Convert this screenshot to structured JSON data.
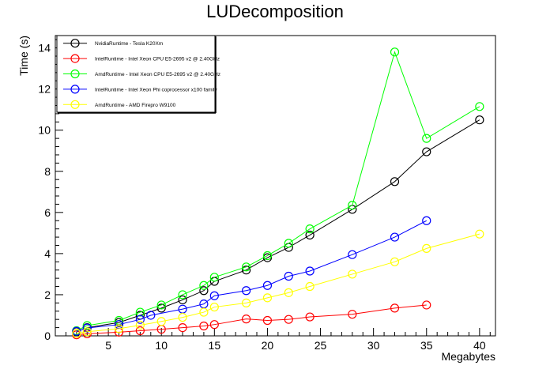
{
  "chart_data": {
    "type": "line",
    "title": "LUDecomposition",
    "xlabel": "Megabytes",
    "ylabel": "Time (s)",
    "xlim": [
      0,
      41.5
    ],
    "ylim": [
      0,
      14.6
    ],
    "xticks": [
      5,
      10,
      15,
      20,
      25,
      30,
      35,
      40
    ],
    "yticks": [
      0,
      2,
      4,
      6,
      8,
      10,
      12,
      14
    ],
    "legend_position": "top-left",
    "grid": false,
    "series": [
      {
        "name": "NvidiaRuntime - Tesla K20Xm",
        "color": "#000000",
        "x": [
          2,
          3,
          6,
          8,
          10,
          12,
          14,
          15,
          18,
          20,
          22,
          24,
          28,
          32,
          35,
          40
        ],
        "y": [
          0.2,
          0.4,
          0.65,
          1.0,
          1.35,
          1.75,
          2.2,
          2.65,
          3.2,
          3.8,
          4.3,
          4.9,
          6.15,
          7.5,
          8.95,
          10.5
        ]
      },
      {
        "name": "IntelRuntime - Intel Xeon CPU E5-2695 v2 @ 2.40GHz",
        "color": "#ff0000",
        "x": [
          2,
          3,
          6,
          8,
          10,
          12,
          14,
          15,
          18,
          20,
          22,
          24,
          28,
          32,
          35
        ],
        "y": [
          0.05,
          0.1,
          0.18,
          0.25,
          0.32,
          0.4,
          0.48,
          0.55,
          0.82,
          0.75,
          0.8,
          0.92,
          1.05,
          1.35,
          1.5
        ]
      },
      {
        "name": "AmdRuntime - Intel Xeon CPU E5-2695 v2 @ 2.40GHz",
        "color": "#00ff00",
        "x": [
          2,
          3,
          6,
          8,
          10,
          12,
          14,
          15,
          18,
          20,
          22,
          24,
          28,
          32,
          35,
          40
        ],
        "y": [
          0.25,
          0.5,
          0.75,
          1.15,
          1.5,
          2.0,
          2.45,
          2.85,
          3.35,
          3.9,
          4.5,
          5.2,
          6.35,
          13.8,
          9.6,
          11.15
        ]
      },
      {
        "name": "IntelRuntime - Intel Xeon Phi coprocessor x100 family",
        "color": "#0000ff",
        "x": [
          2,
          3,
          6,
          8,
          9,
          12,
          14,
          15,
          18,
          20,
          22,
          24,
          28,
          32,
          35
        ],
        "y": [
          0.22,
          0.38,
          0.55,
          0.8,
          1.0,
          1.3,
          1.55,
          1.95,
          2.2,
          2.45,
          2.9,
          3.15,
          3.95,
          4.8,
          5.6
        ]
      },
      {
        "name": "AmdRuntime - AMD Firepro W9100",
        "color": "#ffff00",
        "x": [
          2,
          3,
          6,
          8,
          10,
          12,
          14,
          15,
          18,
          20,
          22,
          24,
          28,
          32,
          35,
          40
        ],
        "y": [
          0.12,
          0.2,
          0.35,
          0.52,
          0.7,
          0.9,
          1.15,
          1.4,
          1.6,
          1.85,
          2.1,
          2.4,
          3.0,
          3.6,
          4.25,
          4.95
        ]
      }
    ]
  }
}
